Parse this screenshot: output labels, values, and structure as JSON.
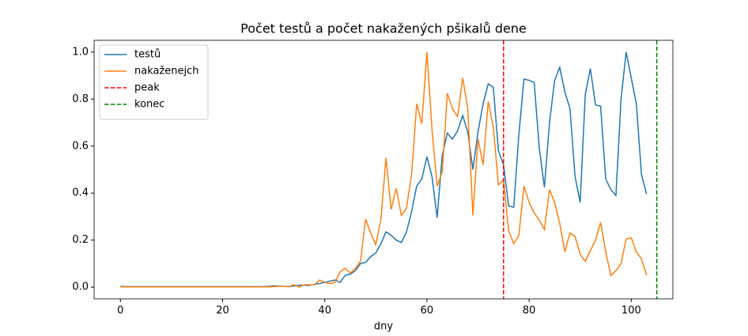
{
  "chart_data": {
    "type": "line",
    "title": "Počet testů a počet nakažených pšikalů dene",
    "xlabel": "dny",
    "x": [
      0,
      1,
      2,
      3,
      4,
      5,
      6,
      7,
      8,
      9,
      10,
      11,
      12,
      13,
      14,
      15,
      16,
      17,
      18,
      19,
      20,
      21,
      22,
      23,
      24,
      25,
      26,
      27,
      28,
      29,
      30,
      31,
      32,
      33,
      34,
      35,
      36,
      37,
      38,
      39,
      40,
      41,
      42,
      43,
      44,
      45,
      46,
      47,
      48,
      49,
      50,
      51,
      52,
      53,
      54,
      55,
      56,
      57,
      58,
      59,
      60,
      61,
      62,
      63,
      64,
      65,
      66,
      67,
      68,
      69,
      70,
      71,
      72,
      73,
      74,
      75,
      76,
      77,
      78,
      79,
      80,
      81,
      82,
      83,
      84,
      85,
      86,
      87,
      88,
      89,
      90,
      91,
      92,
      93,
      94,
      95,
      96,
      97,
      98,
      99,
      100,
      101,
      102,
      103
    ],
    "series": [
      {
        "name": "testů",
        "color": "#1f77b4",
        "values": [
          0.003,
          0.002,
          0.002,
          0.002,
          0.002,
          0.002,
          0.002,
          0.002,
          0.002,
          0.002,
          0.002,
          0.002,
          0.002,
          0.002,
          0.002,
          0.002,
          0.002,
          0.002,
          0.002,
          0.002,
          0.002,
          0.002,
          0.002,
          0.002,
          0.002,
          0.002,
          0.002,
          0.002,
          0.002,
          0.003,
          0.005,
          0.004,
          0.003,
          0.002,
          0.005,
          0.008,
          0.008,
          0.007,
          0.012,
          0.015,
          0.02,
          0.025,
          0.03,
          0.02,
          0.05,
          0.055,
          0.07,
          0.1,
          0.105,
          0.13,
          0.145,
          0.185,
          0.235,
          0.22,
          0.2,
          0.19,
          0.235,
          0.32,
          0.43,
          0.46,
          0.555,
          0.47,
          0.295,
          0.56,
          0.655,
          0.63,
          0.665,
          0.73,
          0.66,
          0.5,
          0.66,
          0.78,
          0.865,
          0.85,
          0.58,
          0.52,
          0.345,
          0.34,
          0.65,
          0.885,
          0.88,
          0.87,
          0.59,
          0.425,
          0.7,
          0.88,
          0.935,
          0.83,
          0.76,
          0.47,
          0.36,
          0.82,
          0.93,
          0.775,
          0.77,
          0.46,
          0.415,
          0.39,
          0.8,
          1.0,
          0.89,
          0.78,
          0.48,
          0.395
        ]
      },
      {
        "name": "nakaženejch",
        "color": "#ff7f0e",
        "values": [
          0.001,
          0.001,
          0.001,
          0.001,
          0.001,
          0.001,
          0.001,
          0.001,
          0.001,
          0.001,
          0.001,
          0.001,
          0.001,
          0.001,
          0.001,
          0.001,
          0.001,
          0.001,
          0.001,
          0.001,
          0.001,
          0.001,
          0.001,
          0.001,
          0.001,
          0.001,
          0.001,
          0.001,
          0.001,
          0.001,
          0.002,
          0.003,
          0.003,
          0.002,
          0.01,
          0.0,
          0.01,
          0.01,
          0.01,
          0.03,
          0.02,
          0.015,
          0.02,
          0.065,
          0.08,
          0.06,
          0.08,
          0.11,
          0.29,
          0.23,
          0.18,
          0.29,
          0.55,
          0.33,
          0.42,
          0.305,
          0.335,
          0.48,
          0.78,
          0.695,
          1.0,
          0.67,
          0.43,
          0.49,
          0.825,
          0.76,
          0.725,
          0.89,
          0.76,
          0.305,
          0.63,
          0.52,
          0.79,
          0.68,
          0.435,
          0.455,
          0.24,
          0.185,
          0.22,
          0.43,
          0.36,
          0.315,
          0.285,
          0.245,
          0.415,
          0.36,
          0.27,
          0.15,
          0.23,
          0.215,
          0.14,
          0.11,
          0.155,
          0.2,
          0.275,
          0.15,
          0.05,
          0.07,
          0.1,
          0.205,
          0.21,
          0.15,
          0.12,
          0.05
        ]
      }
    ],
    "vlines": [
      {
        "name": "peak",
        "x": 75,
        "color": "#ff0000"
      },
      {
        "name": "konec",
        "x": 105,
        "color": "#008000"
      }
    ],
    "xlim": [
      -5.15,
      108.15
    ],
    "ylim": [
      -0.05,
      1.05
    ],
    "xticks": [
      0,
      20,
      40,
      60,
      80,
      100
    ],
    "yticks": [
      {
        "value": 0,
        "label": "0.0"
      },
      {
        "value": 0.2,
        "label": "0.2"
      },
      {
        "value": 0.4,
        "label": "0.4"
      },
      {
        "value": 0.6,
        "label": "0.6"
      },
      {
        "value": 0.8,
        "label": "0.8"
      },
      {
        "value": 1,
        "label": "1.0"
      }
    ],
    "legend": "upper left"
  }
}
